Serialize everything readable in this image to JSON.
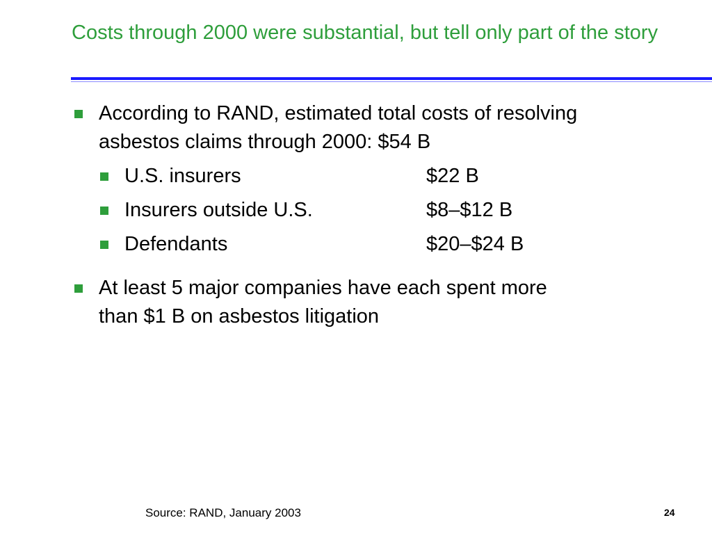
{
  "slide": {
    "title": "Costs through 2000 were substantial, but tell only part of the story",
    "bullets": [
      {
        "lines": [
          "According to RAND, estimated total costs of resolving",
          "asbestos claims through 2000: $54 B"
        ],
        "sub_items": [
          {
            "label": "U.S. insurers",
            "value": "$22 B"
          },
          {
            "label": "Insurers outside U.S.",
            "value": "$8–$12 B"
          },
          {
            "label": "Defendants",
            "value": "$20–$24 B"
          }
        ]
      },
      {
        "lines": [
          "At least 5 major companies have each spent more",
          "than $1 B on asbestos litigation"
        ]
      }
    ],
    "footer_source": "Source: RAND, January 2003",
    "page_number": "24",
    "colors": {
      "title": "#2e9e3b",
      "bullet": "#2e9e3b",
      "rule": "#1a1aff"
    }
  }
}
